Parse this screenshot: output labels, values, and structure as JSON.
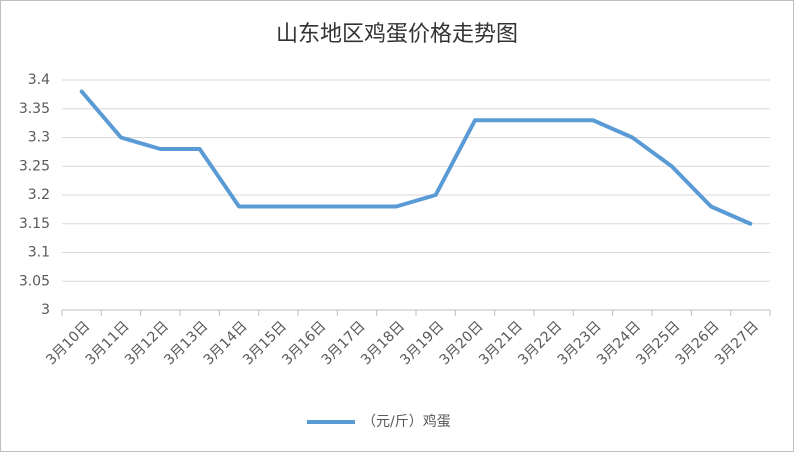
{
  "chart_data": {
    "type": "line",
    "title": "山东地区鸡蛋价格走势图",
    "categories": [
      "3月10日",
      "3月11日",
      "3月12日",
      "3月13日",
      "3月14日",
      "3月15日",
      "3月16日",
      "3月17日",
      "3月18日",
      "3月19日",
      "3月20日",
      "3月21日",
      "3月22日",
      "3月23日",
      "3月24日",
      "3月25日",
      "3月26日",
      "3月27日"
    ],
    "series": [
      {
        "name": "（元/斤）鸡蛋",
        "color": "#5b9bd5",
        "values": [
          3.38,
          3.3,
          3.28,
          3.28,
          3.18,
          3.18,
          3.18,
          3.18,
          3.18,
          3.2,
          3.33,
          3.33,
          3.33,
          3.33,
          3.3,
          3.25,
          3.18,
          3.15
        ]
      }
    ],
    "ylim": [
      3,
      3.4
    ],
    "yticks": [
      3,
      3.05,
      3.1,
      3.15,
      3.2,
      3.25,
      3.3,
      3.35,
      3.4
    ],
    "grid": true,
    "legend": "bottom"
  }
}
